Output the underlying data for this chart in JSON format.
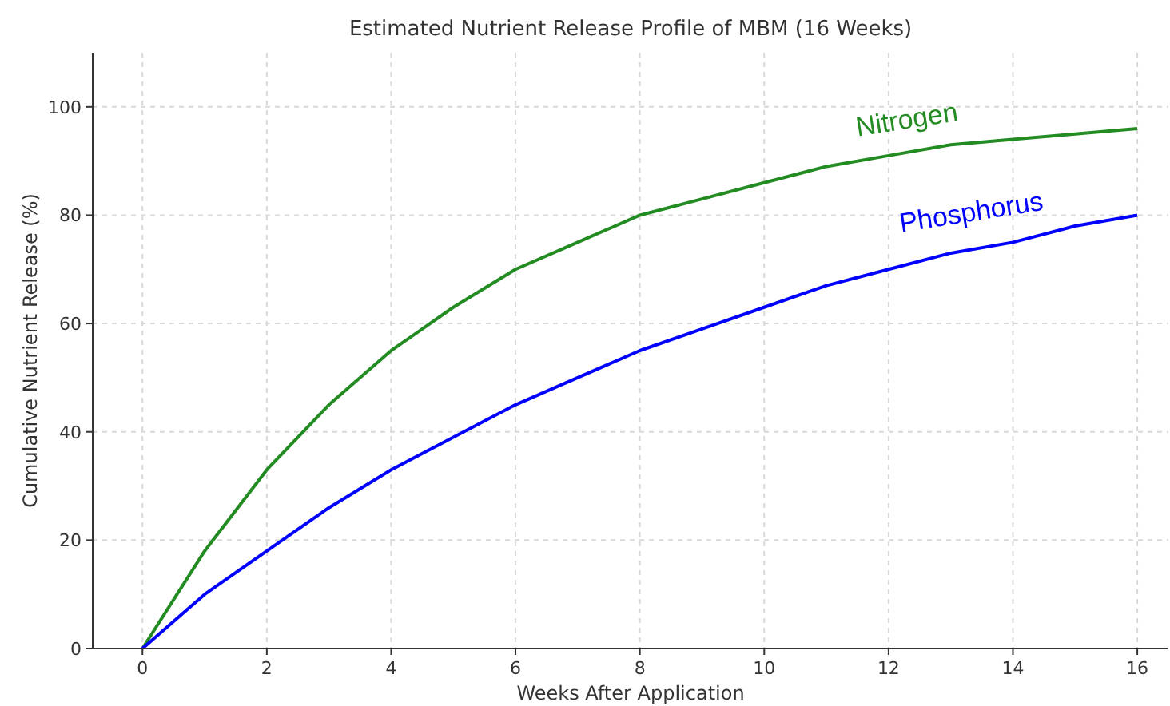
{
  "chart_data": {
    "type": "line",
    "title": "Estimated Nutrient Release Profile of MBM (16 Weeks)",
    "xlabel": "Weeks After Application",
    "ylabel": "Cumulative Nutrient Release (%)",
    "x": [
      0,
      1,
      2,
      3,
      4,
      5,
      6,
      7,
      8,
      9,
      10,
      11,
      12,
      13,
      14,
      15,
      16
    ],
    "series": [
      {
        "name": "Nitrogen",
        "color": "#228b22",
        "values": [
          0,
          18,
          33,
          45,
          55,
          63,
          70,
          75,
          80,
          83,
          86,
          89,
          91,
          93,
          94,
          95,
          96
        ]
      },
      {
        "name": "Phosphorus",
        "color": "#0000ff",
        "values": [
          0,
          10,
          18,
          26,
          33,
          39,
          45,
          50,
          55,
          59,
          63,
          67,
          70,
          73,
          75,
          78,
          80
        ]
      }
    ],
    "xlim": [
      -0.8,
      16.5
    ],
    "xticks": [
      0,
      2,
      4,
      6,
      8,
      10,
      12,
      14,
      16
    ],
    "ylim": [
      0,
      110
    ],
    "yticks": [
      0,
      20,
      40,
      60,
      80,
      100
    ],
    "grid": true,
    "marker": "none",
    "line_style": "solid"
  }
}
